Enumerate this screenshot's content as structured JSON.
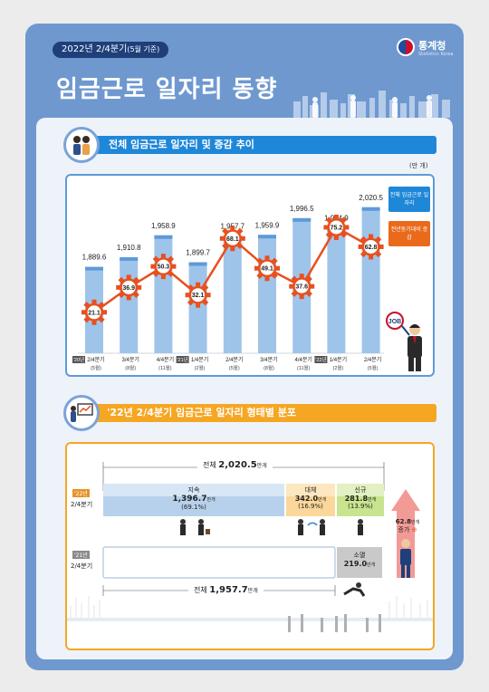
{
  "header": {
    "date": "2022년 2/4분기",
    "date_note": "(5월 기준)",
    "title": "임금근로 일자리 동향",
    "logo_name": "통계청",
    "logo_sub": "Statistics Korea"
  },
  "section1": {
    "title": "전체 임금근로 일자리 및 증감 추이",
    "unit": "(만 개)",
    "legend_bar": "전체 임금근로 일자리",
    "legend_line": "전년동기대비 증감",
    "job_label": "JOB"
  },
  "chart_data": {
    "type": "bar",
    "categories": [
      "2/4분기 (5월)",
      "3/4분기 (8월)",
      "4/4분기 (11월)",
      "1/4분기 (2월)",
      "2/4분기 (5월)",
      "3/4분기 (8월)",
      "4/4분기 (11월)",
      "1/4분기 (2월)",
      "2/4분기 (5월)"
    ],
    "year_tags": [
      "'20년",
      "",
      "",
      "'21년",
      "",
      "",
      "",
      "'22년",
      ""
    ],
    "series": [
      {
        "name": "전체 임금근로 일자리",
        "values": [
          1889.6,
          1910.8,
          1958.9,
          1899.7,
          1957.7,
          1959.9,
          1996.5,
          1974.9,
          2020.5
        ]
      },
      {
        "name": "전년동기대비 증감",
        "values": [
          21.1,
          36.9,
          50.3,
          32.1,
          68.1,
          49.1,
          37.6,
          75.2,
          62.8
        ]
      }
    ],
    "colors": {
      "bar": "#9fc4ea",
      "line": "#e8501e",
      "gear": "#e8501e"
    }
  },
  "section2": {
    "title": "'22년 2/4분기 임금근로 일자리 형태별 분포",
    "total_2022_label": "전체",
    "total_2022_value": "2,020.5",
    "total_2022_unit": "만개",
    "row1_year": "'22년",
    "row1_quarter": "2/4분기",
    "row2_year": "'21년",
    "row2_quarter": "2/4분기",
    "sustain_label": "지속",
    "sustain_value": "1,396.7",
    "sustain_unit": "만개",
    "sustain_pct": "(69.1%)",
    "replace_label": "대체",
    "replace_value": "342.0",
    "replace_unit": "만개",
    "replace_pct": "(16.9%)",
    "new_label": "신규",
    "new_value": "281.8",
    "new_unit": "만개",
    "new_pct": "(13.9%)",
    "gone_label": "소멸",
    "gone_value": "219.0",
    "gone_unit": "만개",
    "increase_value": "62.8",
    "increase_unit": "만개",
    "increase_label": "증가",
    "total_2021_label": "전체",
    "total_2021_value": "1,957.7",
    "total_2021_unit": "만개"
  }
}
